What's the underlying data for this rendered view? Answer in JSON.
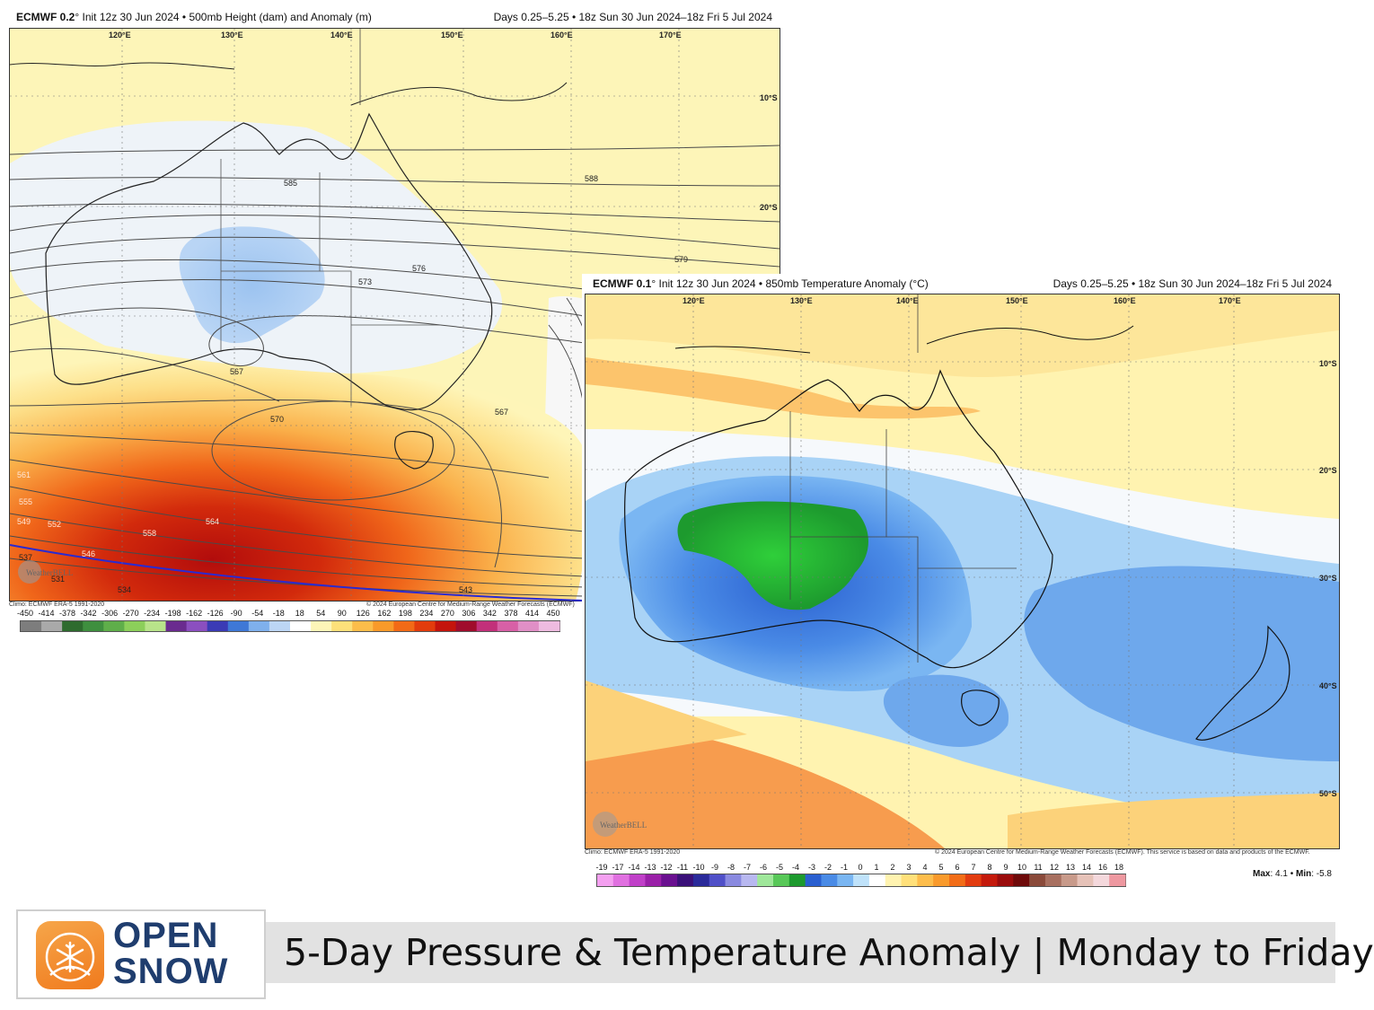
{
  "map1": {
    "model": "ECMWF 0.2",
    "deg": "°",
    "title_rest": "Init 12z 30 Jun 2024 • 500mb Height (dam) and Anomaly (m)",
    "title_right": "Days 0.25–5.25 • 18z Sun 30 Jun 2024–18z Fri 5 Jul 2024",
    "lon_labels": [
      "120°E",
      "130°E",
      "140°E",
      "150°E",
      "160°E",
      "170°E"
    ],
    "lat_labels": [
      "10°S",
      "20°S"
    ],
    "contour_labels": [
      "585",
      "588",
      "579",
      "576",
      "573",
      "567",
      "570",
      "567",
      "564",
      "561",
      "558",
      "555",
      "552",
      "549",
      "546",
      "543",
      "537",
      "534",
      "531"
    ],
    "watermark": "WeatherBELL",
    "credit_left": "Climo: ECMWF ERA-5 1991-2020",
    "credit_right": "© 2024 European Centre for Medium-Range Weather Forecasts (ECMWF)",
    "colorbar": {
      "labels": [
        "-450",
        "-414",
        "-378",
        "-342",
        "-306",
        "-270",
        "-234",
        "-198",
        "-162",
        "-126",
        "-90",
        "-54",
        "-18",
        "18",
        "54",
        "90",
        "126",
        "162",
        "198",
        "234",
        "270",
        "306",
        "342",
        "378",
        "414",
        "450"
      ],
      "colors": [
        "#7d7d7d",
        "#a9a9a9",
        "#2e6b2e",
        "#3f8f3f",
        "#5fae4a",
        "#8ccf5a",
        "#b8e38a",
        "#6a2b8f",
        "#8b4fbf",
        "#3b3bb5",
        "#3f78d6",
        "#7fb0ec",
        "#bcd6f4",
        "#ffffff",
        "#fdf5b8",
        "#fde07a",
        "#fcbd4a",
        "#f99a2a",
        "#f26a16",
        "#e23c0c",
        "#c4140c",
        "#a00c2c",
        "#c2307a",
        "#d760a6",
        "#e08fc6",
        "#eebbe0"
      ]
    }
  },
  "map2": {
    "model": "ECMWF 0.1",
    "deg": "°",
    "title_rest": "Init 12z 30 Jun 2024 • 850mb Temperature Anomaly (°C)",
    "title_right": "Days 0.25–5.25 • 18z Sun 30 Jun 2024–18z Fri 5 Jul 2024",
    "lon_labels": [
      "120°E",
      "130°E",
      "140°E",
      "150°E",
      "160°E",
      "170°E"
    ],
    "lat_labels": [
      "10°S",
      "20°S",
      "30°S",
      "40°S",
      "50°S"
    ],
    "watermark": "WeatherBELL",
    "credit_left": "Climo: ECMWF ERA-5 1991-2020",
    "credit_right": "© 2024 European Centre for Medium-Range Weather Forecasts (ECMWF). This service is based on data and products of the ECMWF.",
    "colorbar": {
      "labels": [
        "-19",
        "-17",
        "-14",
        "-13",
        "-12",
        "-11",
        "-10",
        "-9",
        "-8",
        "-7",
        "-6",
        "-5",
        "-4",
        "-3",
        "-2",
        "-1",
        "0",
        "1",
        "2",
        "3",
        "4",
        "5",
        "6",
        "7",
        "8",
        "9",
        "10",
        "11",
        "12",
        "13",
        "14",
        "16",
        "18"
      ],
      "colors": [
        "#f4a0f0",
        "#e070e0",
        "#c040c8",
        "#9a20a8",
        "#6a1090",
        "#3a1078",
        "#2a2a9a",
        "#5050c8",
        "#8a8ae0",
        "#b8b8f0",
        "#9fe79a",
        "#58c858",
        "#1d9a2e",
        "#2a5fd0",
        "#4a8be6",
        "#7ab6f2",
        "#bfe2fa",
        "#ffffff",
        "#fff3b0",
        "#ffe07a",
        "#fdbd4c",
        "#f99a2c",
        "#f26d18",
        "#e23c10",
        "#c41a0c",
        "#9a0c0c",
        "#6e0a0a",
        "#8a4a3a",
        "#a87060",
        "#c89a8a",
        "#e6c2b8",
        "#f4d8dc",
        "#ee98a0"
      ]
    },
    "max_label": "Max",
    "max_value": ": 4.1 •",
    "min_label": "Min",
    "min_value": ": -5.8"
  },
  "brand": {
    "line1": "OPEN",
    "line2": "SNOW"
  },
  "caption": "5-Day Pressure & Temperature Anomaly | Monday to Friday"
}
